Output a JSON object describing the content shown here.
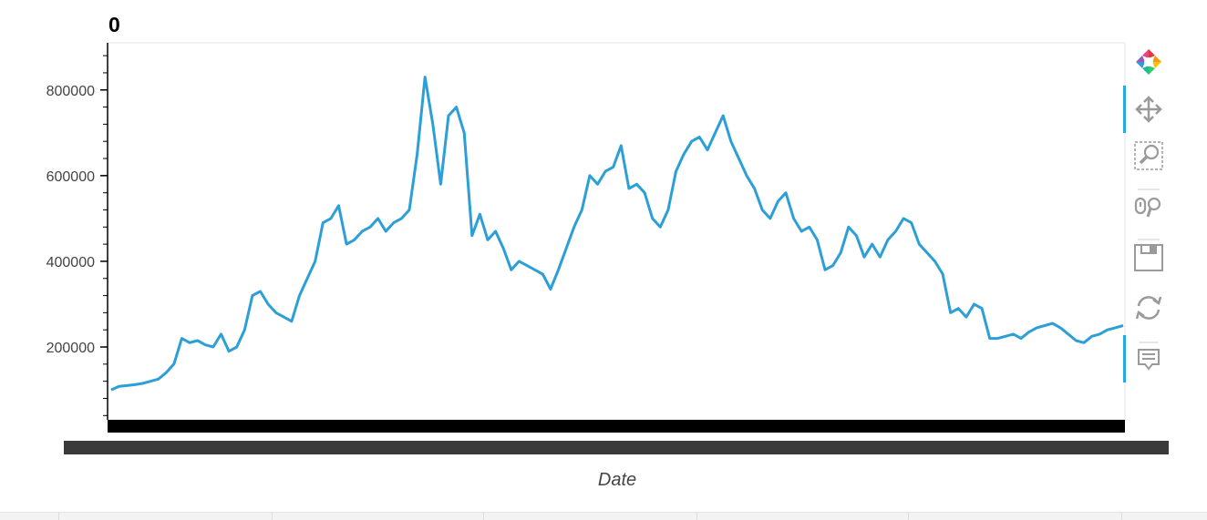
{
  "chart_data": {
    "type": "line",
    "title": "0",
    "xlabel": "Date",
    "ylabel": "",
    "ylim": [
      30000,
      910000
    ],
    "yticks": [
      200000,
      400000,
      600000,
      800000
    ],
    "ytick_labels": [
      "200000",
      "400000",
      "600000",
      "800000"
    ],
    "line_color": "#2c9fd6",
    "series": [
      {
        "values": [
          100000,
          108000,
          110000,
          112000,
          115000,
          120000,
          125000,
          140000,
          160000,
          220000,
          210000,
          215000,
          205000,
          200000,
          230000,
          190000,
          200000,
          240000,
          320000,
          330000,
          300000,
          280000,
          270000,
          260000,
          320000,
          360000,
          400000,
          490000,
          500000,
          530000,
          440000,
          450000,
          470000,
          480000,
          500000,
          470000,
          490000,
          500000,
          520000,
          650000,
          830000,
          720000,
          580000,
          740000,
          760000,
          700000,
          460000,
          510000,
          450000,
          470000,
          430000,
          380000,
          400000,
          390000,
          380000,
          370000,
          335000,
          380000,
          430000,
          480000,
          520000,
          600000,
          580000,
          610000,
          620000,
          670000,
          570000,
          580000,
          560000,
          500000,
          480000,
          520000,
          610000,
          650000,
          680000,
          690000,
          660000,
          700000,
          740000,
          680000,
          640000,
          600000,
          570000,
          520000,
          500000,
          540000,
          560000,
          500000,
          470000,
          480000,
          450000,
          380000,
          390000,
          420000,
          480000,
          460000,
          410000,
          440000,
          410000,
          450000,
          470000,
          500000,
          490000,
          440000,
          420000,
          400000,
          370000,
          280000,
          290000,
          270000,
          300000,
          290000,
          220000,
          220000,
          225000,
          230000,
          220000,
          235000,
          245000,
          250000,
          255000,
          245000,
          230000,
          215000,
          210000,
          225000,
          230000,
          240000,
          245000,
          250000
        ]
      }
    ],
    "x_tick_labels_note": "",
    "legend": "none",
    "grid": false
  },
  "toolbar": {
    "tools": [
      {
        "name": "bokeh-logo-icon"
      },
      {
        "name": "pan-tool-icon",
        "active": true
      },
      {
        "name": "box-zoom-tool-icon"
      },
      {
        "name": "wheel-zoom-tool-icon"
      },
      {
        "name": "save-tool-icon"
      },
      {
        "name": "reset-tool-icon"
      },
      {
        "name": "hover-tool-icon",
        "active": true
      }
    ],
    "active_color": "#26aae1"
  }
}
